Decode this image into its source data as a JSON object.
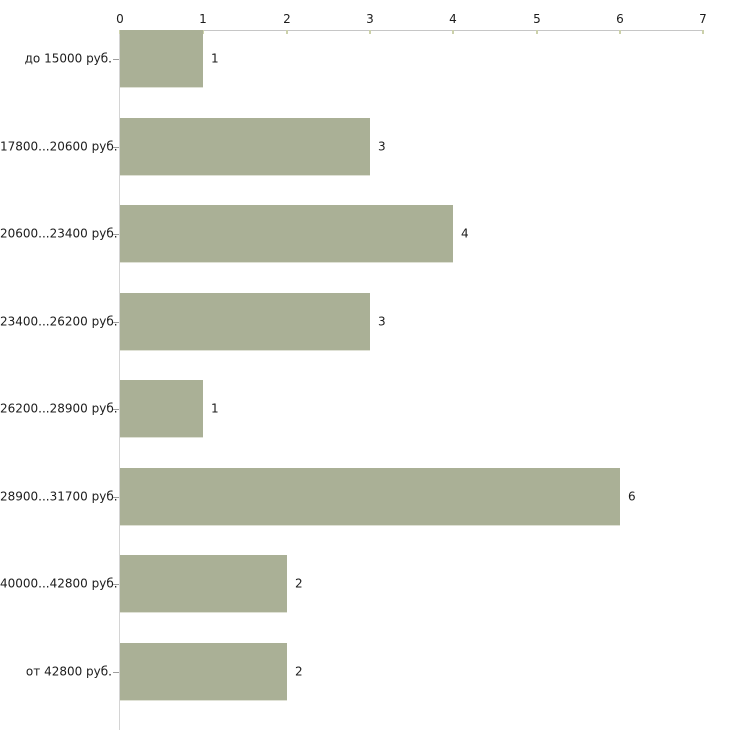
{
  "chart_data": {
    "type": "bar",
    "orientation": "horizontal",
    "title": "",
    "xlabel": "",
    "ylabel": "",
    "categories": [
      "до 15000 руб.",
      "17800...20600 руб.",
      "20600...23400 руб.",
      "23400...26200 руб.",
      "26200...28900 руб.",
      "28900...31700 руб.",
      "40000...42800 руб.",
      "от 42800 руб."
    ],
    "values": [
      1,
      3,
      4,
      3,
      1,
      6,
      2,
      2
    ],
    "value_labels": [
      "1",
      "3",
      "4",
      "3",
      "1",
      "6",
      "2",
      "2"
    ],
    "xlim": [
      0,
      7
    ],
    "x_ticks": [
      "0",
      "1",
      "2",
      "3",
      "4",
      "5",
      "6",
      "7"
    ],
    "x_axis_position": "top",
    "grid": "off",
    "legend": "none",
    "colors": {
      "bar_fill": "#aab096",
      "bar_edge": "#dfe1d5",
      "x_axis_line": "#c6c6c6",
      "y_axis_line": "#d4d4d4",
      "x_tick_mark": "#ccd1ab",
      "y_tick_mark": "#9e9e9e",
      "text": "#1c1c1c",
      "background": "#ffffff"
    }
  }
}
